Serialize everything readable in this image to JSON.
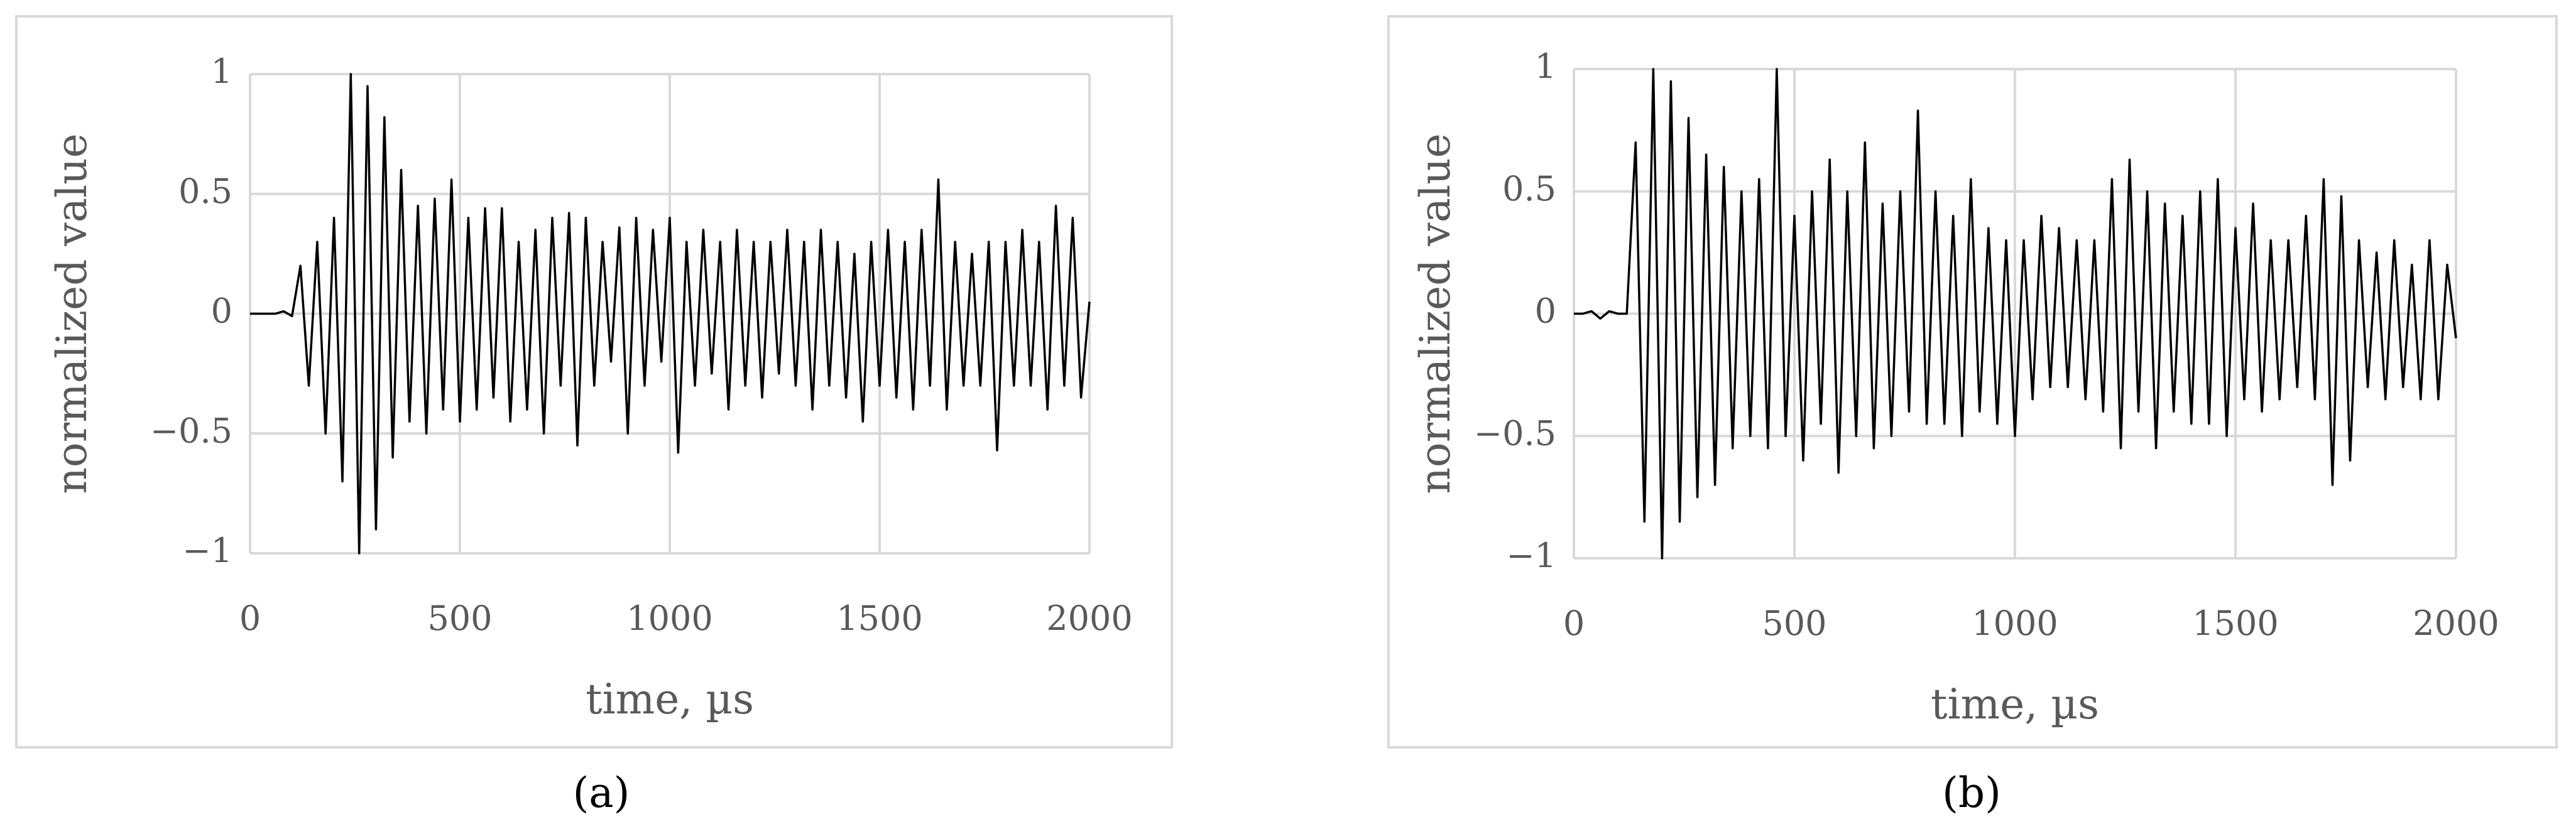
{
  "chart_data": [
    {
      "type": "line",
      "title": "(a)",
      "xlabel": "time, µs",
      "ylabel": "normalized value",
      "color": "#000000",
      "grid": true,
      "x": [
        0,
        20,
        40,
        60,
        80,
        100,
        120,
        140,
        160,
        180,
        200,
        220,
        240,
        260,
        280,
        300,
        320,
        340,
        360,
        380,
        400,
        420,
        440,
        460,
        480,
        500,
        520,
        540,
        560,
        580,
        600,
        620,
        640,
        660,
        680,
        700,
        720,
        740,
        760,
        780,
        800,
        820,
        840,
        860,
        880,
        900,
        920,
        940,
        960,
        980,
        1000,
        1020,
        1040,
        1060,
        1080,
        1100,
        1120,
        1140,
        1160,
        1180,
        1200,
        1220,
        1240,
        1260,
        1280,
        1300,
        1320,
        1340,
        1360,
        1380,
        1400,
        1420,
        1440,
        1460,
        1480,
        1500,
        1520,
        1540,
        1560,
        1580,
        1600,
        1620,
        1640,
        1660,
        1680,
        1700,
        1720,
        1740,
        1760,
        1780,
        1800,
        1820,
        1840,
        1860,
        1880,
        1900,
        1920,
        1940,
        1960,
        1980,
        2000
      ],
      "values": [
        0,
        0,
        0,
        0,
        0.01,
        -0.01,
        0.2,
        -0.3,
        0.3,
        -0.5,
        0.4,
        -0.7,
        1,
        -1,
        0.95,
        -0.9,
        0.82,
        -0.6,
        0.6,
        -0.45,
        0.45,
        -0.5,
        0.48,
        -0.4,
        0.56,
        -0.45,
        0.4,
        -0.4,
        0.44,
        -0.35,
        0.44,
        -0.45,
        0.3,
        -0.4,
        0.35,
        -0.5,
        0.4,
        -0.3,
        0.42,
        -0.55,
        0.4,
        -0.3,
        0.3,
        -0.2,
        0.36,
        -0.5,
        0.4,
        -0.3,
        0.35,
        -0.2,
        0.4,
        -0.58,
        0.3,
        -0.3,
        0.35,
        -0.25,
        0.3,
        -0.4,
        0.35,
        -0.3,
        0.3,
        -0.35,
        0.3,
        -0.25,
        0.35,
        -0.3,
        0.3,
        -0.4,
        0.35,
        -0.3,
        0.3,
        -0.35,
        0.25,
        -0.45,
        0.3,
        -0.3,
        0.35,
        -0.35,
        0.3,
        -0.4,
        0.35,
        -0.3,
        0.56,
        -0.4,
        0.3,
        -0.3,
        0.25,
        -0.3,
        0.3,
        -0.57,
        0.3,
        -0.3,
        0.35,
        -0.3,
        0.3,
        -0.4,
        0.45,
        -0.3,
        0.4,
        -0.35,
        0.05
      ],
      "xlim": [
        0,
        2000
      ],
      "xticks": [
        0,
        500,
        1000,
        1500,
        2000
      ],
      "ylim": [
        -1,
        1
      ],
      "yticks": [
        {
          "value": -1,
          "label": "−1"
        },
        {
          "value": -0.5,
          "label": "−0.5"
        },
        0,
        0.5,
        1
      ]
    },
    {
      "type": "line",
      "title": "(b)",
      "xlabel": "time, µs",
      "ylabel": "normalized value",
      "color": "#000000",
      "grid": true,
      "x": [
        0,
        20,
        40,
        60,
        80,
        100,
        120,
        140,
        160,
        180,
        200,
        220,
        240,
        260,
        280,
        300,
        320,
        340,
        360,
        380,
        400,
        420,
        440,
        460,
        480,
        500,
        520,
        540,
        560,
        580,
        600,
        620,
        640,
        660,
        680,
        700,
        720,
        740,
        760,
        780,
        800,
        820,
        840,
        860,
        880,
        900,
        920,
        940,
        960,
        980,
        1000,
        1020,
        1040,
        1060,
        1080,
        1100,
        1120,
        1140,
        1160,
        1180,
        1200,
        1220,
        1240,
        1260,
        1280,
        1300,
        1320,
        1340,
        1360,
        1380,
        1400,
        1420,
        1440,
        1460,
        1480,
        1500,
        1520,
        1540,
        1560,
        1580,
        1600,
        1620,
        1640,
        1660,
        1680,
        1700,
        1720,
        1740,
        1760,
        1780,
        1800,
        1820,
        1840,
        1860,
        1880,
        1900,
        1920,
        1940,
        1960,
        1980,
        2000
      ],
      "values": [
        0,
        0,
        0.01,
        -0.02,
        0.01,
        0,
        0,
        0.7,
        -0.85,
        1,
        -1,
        0.95,
        -0.85,
        0.8,
        -0.75,
        0.65,
        -0.7,
        0.6,
        -0.55,
        0.5,
        -0.5,
        0.55,
        -0.55,
        1,
        -0.5,
        0.4,
        -0.6,
        0.5,
        -0.45,
        0.63,
        -0.65,
        0.5,
        -0.5,
        0.7,
        -0.55,
        0.45,
        -0.5,
        0.5,
        -0.4,
        0.83,
        -0.45,
        0.5,
        -0.45,
        0.4,
        -0.5,
        0.55,
        -0.4,
        0.35,
        -0.45,
        0.3,
        -0.5,
        0.3,
        -0.35,
        0.4,
        -0.3,
        0.35,
        -0.3,
        0.3,
        -0.35,
        0.3,
        -0.4,
        0.55,
        -0.55,
        0.63,
        -0.4,
        0.5,
        -0.55,
        0.45,
        -0.4,
        0.4,
        -0.45,
        0.5,
        -0.45,
        0.55,
        -0.5,
        0.35,
        -0.35,
        0.45,
        -0.4,
        0.3,
        -0.35,
        0.3,
        -0.3,
        0.4,
        -0.35,
        0.55,
        -0.7,
        0.48,
        -0.6,
        0.3,
        -0.3,
        0.25,
        -0.35,
        0.3,
        -0.3,
        0.2,
        -0.35,
        0.3,
        -0.35,
        0.2,
        -0.1
      ],
      "xlim": [
        0,
        2000
      ],
      "xticks": [
        0,
        500,
        1000,
        1500,
        2000
      ],
      "ylim": [
        -1,
        1
      ],
      "yticks": [
        {
          "value": -1,
          "label": "−1"
        },
        {
          "value": -0.5,
          "label": "−0.5"
        },
        0,
        0.5,
        1
      ]
    }
  ]
}
